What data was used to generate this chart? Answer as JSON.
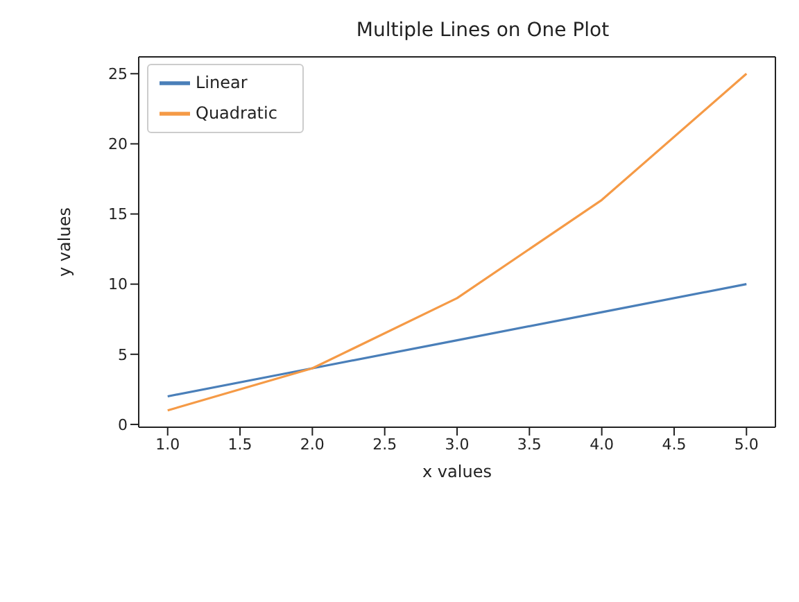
{
  "chart_data": {
    "type": "line",
    "title": "Multiple Lines on One Plot",
    "xlabel": "x values",
    "ylabel": "y values",
    "x": [
      1,
      2,
      3,
      4,
      5
    ],
    "series": [
      {
        "name": "Linear",
        "color": "#4a7fb9",
        "values": [
          2,
          4,
          6,
          8,
          10
        ]
      },
      {
        "name": "Quadratic",
        "color": "#f59a46",
        "values": [
          1,
          4,
          9,
          16,
          25
        ]
      }
    ],
    "xlim": [
      0.8,
      5.2
    ],
    "xticks": [
      {
        "value": 1,
        "label": "1.0"
      },
      {
        "value": 1.5,
        "label": "1.5"
      },
      {
        "value": 2,
        "label": "2.0"
      },
      {
        "value": 2.5,
        "label": "2.5"
      },
      {
        "value": 3,
        "label": "3.0"
      },
      {
        "value": 3.5,
        "label": "3.5"
      },
      {
        "value": 4,
        "label": "4.0"
      },
      {
        "value": 4.5,
        "label": "4.5"
      },
      {
        "value": 5,
        "label": "5.0"
      }
    ],
    "ylim": [
      -0.2,
      26.2
    ],
    "yticks": [
      0,
      5,
      10,
      15,
      20,
      25
    ],
    "grid": false,
    "legend": "top left",
    "marker": "none",
    "line_style": "solid"
  }
}
